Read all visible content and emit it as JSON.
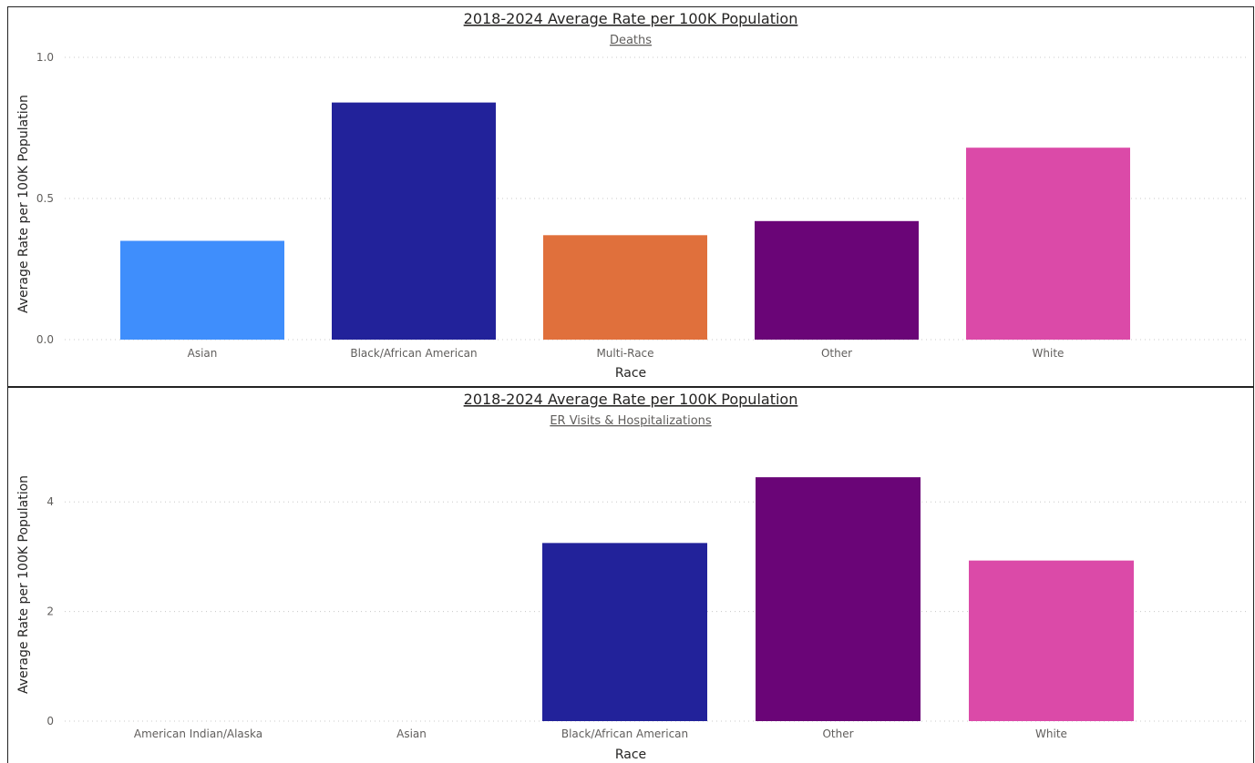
{
  "chart_data": [
    {
      "type": "bar",
      "title": "2018-2024 Average Rate per 100K Population",
      "subtitle": "Deaths",
      "xlabel": "Race",
      "ylabel": "Average Rate per 100K Population",
      "ylim": [
        0,
        1.0
      ],
      "yticks": [
        0,
        0.5,
        1.0
      ],
      "ytick_labels": [
        "0.0",
        "0.5",
        "1.0"
      ],
      "grid": true,
      "categories": [
        "Asian",
        "Black/African American",
        "Multi-Race",
        "Other",
        "White"
      ],
      "values": [
        0.35,
        0.84,
        0.37,
        0.42,
        0.68
      ],
      "colors": [
        "#3f8efc",
        "#22229a",
        "#e0703c",
        "#6a0577",
        "#db4aa8"
      ]
    },
    {
      "type": "bar",
      "title": "2018-2024 Average Rate per 100K Population",
      "subtitle": "ER Visits & Hospitalizations",
      "xlabel": "Race",
      "ylabel": "Average Rate per 100K Population",
      "ylim": [
        0,
        5.2
      ],
      "yticks": [
        0,
        2,
        4
      ],
      "ytick_labels": [
        "0",
        "2",
        "4"
      ],
      "grid": true,
      "categories": [
        "American Indian/Alaska",
        "Asian",
        "Black/African American",
        "Other",
        "White"
      ],
      "values": [
        0,
        0,
        3.25,
        4.45,
        2.93
      ],
      "colors": [
        "#3f8efc",
        "#3f8efc",
        "#22229a",
        "#6a0577",
        "#db4aa8"
      ]
    }
  ]
}
